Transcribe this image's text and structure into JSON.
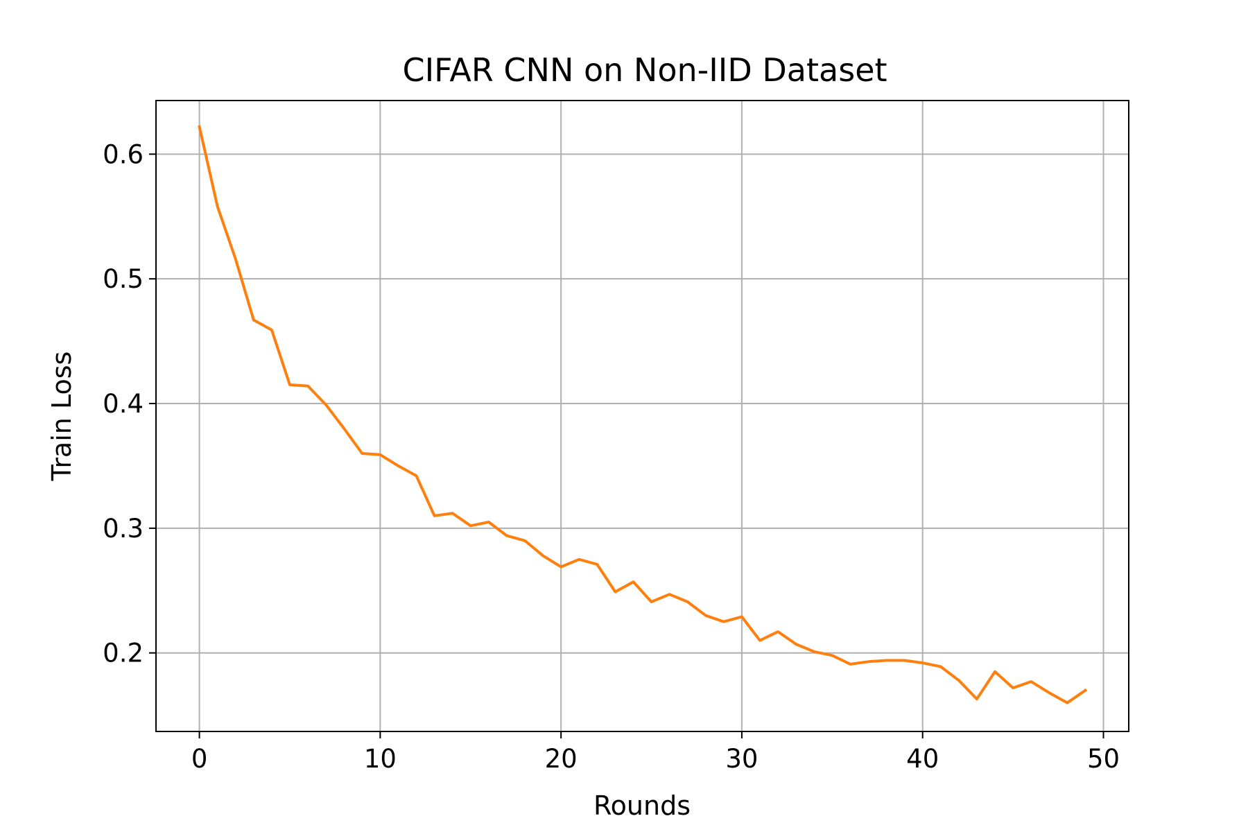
{
  "chart_data": {
    "type": "line",
    "title": "CIFAR CNN on Non-IID Dataset",
    "xlabel": "Rounds",
    "ylabel": "Train Loss",
    "xlim": [
      -2.4,
      51.4
    ],
    "ylim": [
      0.137,
      0.643
    ],
    "xticks": [
      0,
      10,
      20,
      30,
      40,
      50
    ],
    "xtick_labels": [
      "0",
      "10",
      "20",
      "30",
      "40",
      "50"
    ],
    "yticks": [
      0.2,
      0.3,
      0.4,
      0.5,
      0.6
    ],
    "ytick_labels": [
      "0.2",
      "0.3",
      "0.4",
      "0.5",
      "0.6"
    ],
    "grid": true,
    "series": [
      {
        "color": "#ff7f0e",
        "x": [
          0,
          1,
          2,
          3,
          4,
          5,
          6,
          7,
          8,
          9,
          10,
          11,
          12,
          13,
          14,
          15,
          16,
          17,
          18,
          19,
          20,
          21,
          22,
          23,
          24,
          25,
          26,
          27,
          28,
          29,
          30,
          31,
          32,
          33,
          34,
          35,
          36,
          37,
          38,
          39,
          40,
          41,
          42,
          43,
          44,
          45,
          46,
          47,
          48,
          49
        ],
        "y": [
          0.622,
          0.558,
          0.516,
          0.467,
          0.459,
          0.415,
          0.414,
          0.399,
          0.38,
          0.36,
          0.359,
          0.35,
          0.342,
          0.31,
          0.312,
          0.302,
          0.305,
          0.294,
          0.29,
          0.278,
          0.269,
          0.275,
          0.271,
          0.249,
          0.257,
          0.241,
          0.247,
          0.241,
          0.23,
          0.225,
          0.229,
          0.21,
          0.217,
          0.207,
          0.201,
          0.198,
          0.191,
          0.193,
          0.194,
          0.194,
          0.192,
          0.189,
          0.178,
          0.163,
          0.185,
          0.172,
          0.177,
          0.168,
          0.16,
          0.17
        ]
      }
    ]
  }
}
